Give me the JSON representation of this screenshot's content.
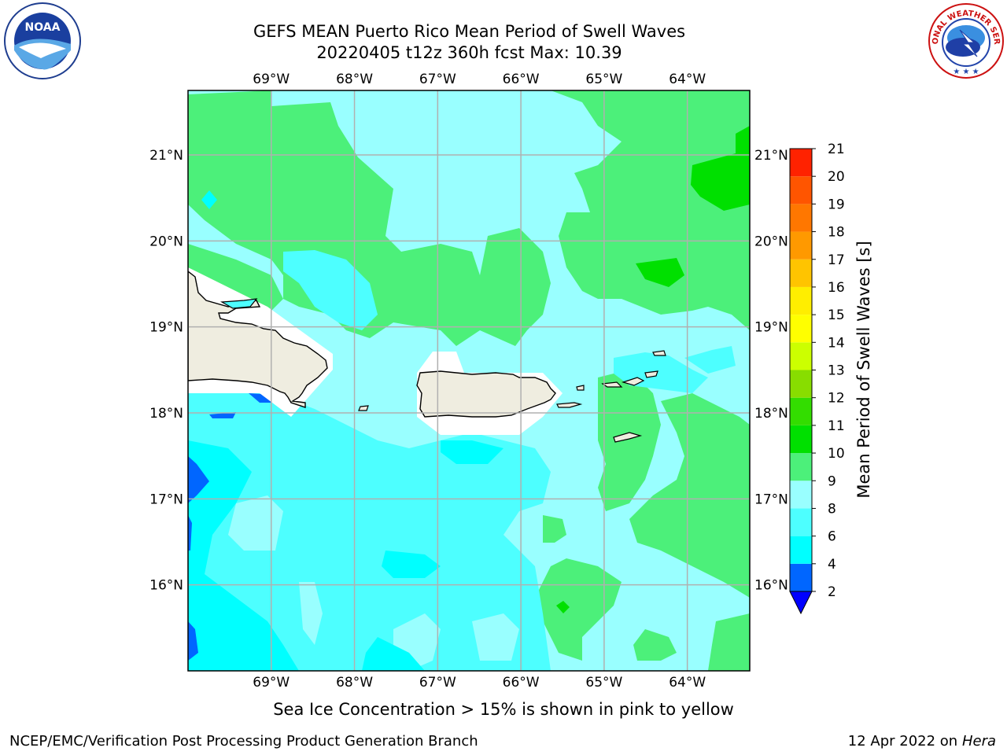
{
  "header": {
    "title_line1": "GEFS MEAN Puerto Rico Mean Period of Swell Waves",
    "title_line2": "20220405 t12z 360h fcst   Max: 10.39"
  },
  "logos": {
    "noaa_text": "NOAA",
    "noaa_ring_text": "NATIONAL OCEANIC AND ATMOSPHERIC ADMINISTRATION · U.S. DEPARTMENT OF COMMERCE",
    "nws_ring_text": "NATIONAL WEATHER SERVICE"
  },
  "map": {
    "lon_ticks": [
      "69°W",
      "68°W",
      "67°W",
      "66°W",
      "65°W",
      "64°W"
    ],
    "lat_ticks": [
      "21°N",
      "20°N",
      "19°N",
      "18°N",
      "17°N",
      "16°N"
    ],
    "extent": {
      "lon_min": -70.0,
      "lon_max": -63.25,
      "lat_min": 15.0,
      "lat_max": 21.75
    },
    "grid": true
  },
  "colorbar": {
    "label": "Mean Period of Swell Waves [s]",
    "ticks": [
      "2",
      "4",
      "6",
      "8",
      "9",
      "10",
      "11",
      "12",
      "13",
      "14",
      "15",
      "16",
      "17",
      "18",
      "19",
      "20",
      "21"
    ],
    "levels": [
      2,
      4,
      6,
      8,
      9,
      10,
      11,
      12,
      13,
      14,
      15,
      16,
      17,
      18,
      19,
      20,
      21
    ],
    "colors": [
      "#0066ff",
      "#00ffff",
      "#4dffff",
      "#99ffff",
      "#4cf07a",
      "#00e000",
      "#33dd00",
      "#88dd00",
      "#ccff00",
      "#ffff00",
      "#ffee00",
      "#ffc400",
      "#ff9900",
      "#ff7700",
      "#ff5500",
      "#ff2200",
      "#ff0000"
    ],
    "under_color": "#0000ff"
  },
  "caption": "Sea Ice Concentration > 15% is shown in pink to yellow",
  "footer": {
    "left": "NCEP/EMC/Verification Post Processing Product Generation Branch",
    "right_date": "12 Apr 2022 on ",
    "right_host": "Hera"
  },
  "colors": {
    "land": "#efede0",
    "grid": "#b0b0b0",
    "swell_4_6": "#00ffff",
    "swell_6_8": "#4dffff",
    "swell_8_9": "#99ffff",
    "swell_9_10": "#4cf07a",
    "swell_10_11": "#00e000",
    "swell_2_4": "#0066ff"
  }
}
